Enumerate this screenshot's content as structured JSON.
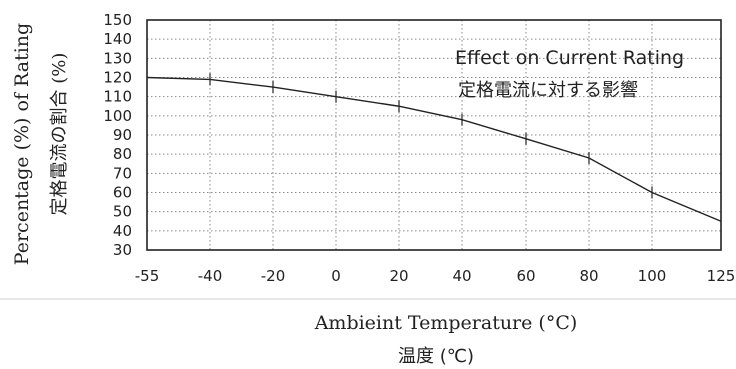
{
  "chart_data": {
    "type": "line",
    "title": "",
    "xlabel": "Ambieint Temperature (°C)",
    "xlabel_secondary": "温度 (℃)",
    "ylabel": "Percentage (%) of Rating",
    "ylabel_secondary": "定格電流の割合 (%)",
    "annotation": {
      "line1": "Effect on Current Rating",
      "line2": "定格電流に対する影響"
    },
    "categories": [
      "-55",
      "-40",
      "-20",
      "0",
      "20",
      "40",
      "60",
      "80",
      "100",
      "125"
    ],
    "series": [
      {
        "values": [
          120,
          119,
          115,
          110,
          105,
          98,
          88,
          78,
          60,
          45
        ],
        "markers": [
          false,
          true,
          true,
          true,
          true,
          true,
          true,
          true,
          true,
          false
        ]
      }
    ],
    "ylim": [
      30,
      150
    ],
    "yticks": [
      30,
      40,
      50,
      60,
      70,
      80,
      90,
      100,
      110,
      120,
      130,
      140,
      150
    ],
    "grid": true,
    "colors": {
      "line": "#222222",
      "grid": "#8a8a8a"
    }
  }
}
